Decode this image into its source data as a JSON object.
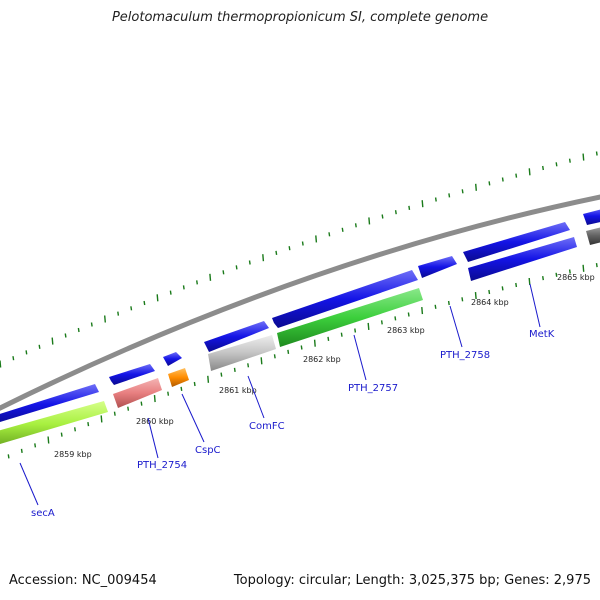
{
  "title": "Pelotomaculum thermopropionicum SI, complete genome",
  "footer": {
    "accession": "Accession: NC_009454",
    "topology": "Topology: circular; Length: 3,025,375 bp; Genes: 2,975"
  },
  "ruler": {
    "labels": [
      "2859 kbp",
      "2860 kbp",
      "2861 kbp",
      "2862 kbp",
      "2863 kbp",
      "2864 kbp",
      "2865 kbp"
    ]
  },
  "gene_labels": [
    "secA",
    "PTH_2754",
    "CspC",
    "ComFC",
    "PTH_2757",
    "PTH_2758",
    "MetK"
  ],
  "colors": {
    "forward_gene": "#1414e6",
    "reverse_blue": "#1414e6",
    "secA_cds": "#a8f040",
    "PTH_2754_cds": "#e87f80",
    "CspC_cds": "#ff8c00",
    "ComFC_cds": "#c4c4c4",
    "PTH_2757_cds": "#3ccf3c",
    "backbone": "#8c8c8c",
    "ticks": "#1a7a1a",
    "label_text": "#1a1acc"
  }
}
